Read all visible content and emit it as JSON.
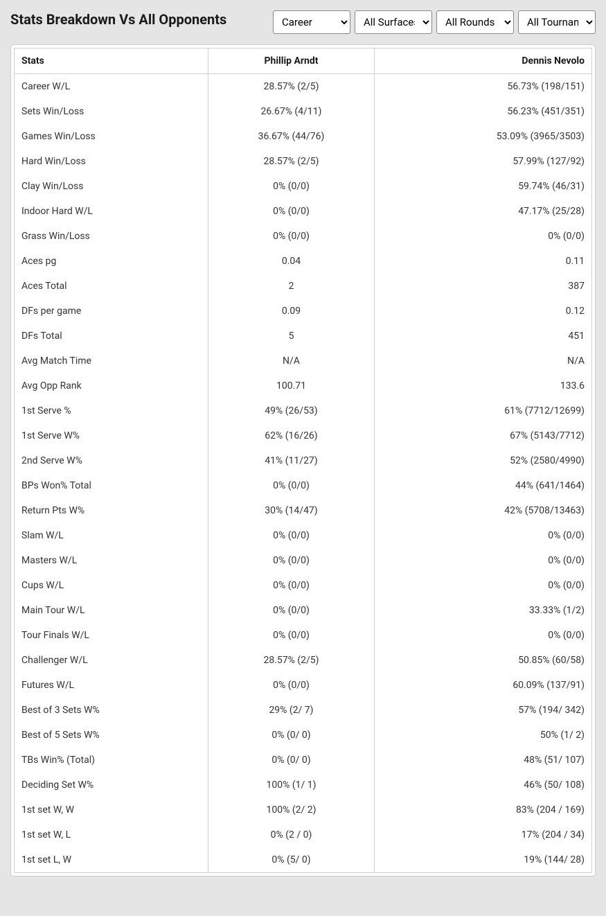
{
  "title": "Stats Breakdown Vs All Opponents",
  "filters": {
    "career": {
      "selected": "Career",
      "options": [
        "Career"
      ]
    },
    "surface": {
      "selected": "All Surfaces",
      "options": [
        "All Surfaces"
      ]
    },
    "rounds": {
      "selected": "All Rounds",
      "options": [
        "All Rounds"
      ]
    },
    "tournaments": {
      "selected": "All Tournaments",
      "options": [
        "All Tournaments"
      ]
    }
  },
  "columns": {
    "stats": "Stats",
    "player1": "Phillip Arndt",
    "player2": "Dennis Nevolo"
  },
  "rows": [
    {
      "stat": "Career W/L",
      "p1": "28.57% (2/5)",
      "p2": "56.73% (198/151)"
    },
    {
      "stat": "Sets Win/Loss",
      "p1": "26.67% (4/11)",
      "p2": "56.23% (451/351)"
    },
    {
      "stat": "Games Win/Loss",
      "p1": "36.67% (44/76)",
      "p2": "53.09% (3965/3503)"
    },
    {
      "stat": "Hard Win/Loss",
      "p1": "28.57% (2/5)",
      "p2": "57.99% (127/92)"
    },
    {
      "stat": "Clay Win/Loss",
      "p1": "0% (0/0)",
      "p2": "59.74% (46/31)"
    },
    {
      "stat": "Indoor Hard W/L",
      "p1": "0% (0/0)",
      "p2": "47.17% (25/28)"
    },
    {
      "stat": "Grass Win/Loss",
      "p1": "0% (0/0)",
      "p2": "0% (0/0)"
    },
    {
      "stat": "Aces pg",
      "p1": "0.04",
      "p2": "0.11"
    },
    {
      "stat": "Aces Total",
      "p1": "2",
      "p2": "387"
    },
    {
      "stat": "DFs per game",
      "p1": "0.09",
      "p2": "0.12"
    },
    {
      "stat": "DFs Total",
      "p1": "5",
      "p2": "451"
    },
    {
      "stat": "Avg Match Time",
      "p1": "N/A",
      "p2": "N/A"
    },
    {
      "stat": "Avg Opp Rank",
      "p1": "100.71",
      "p2": "133.6"
    },
    {
      "stat": "1st Serve %",
      "p1": "49% (26/53)",
      "p2": "61% (7712/12699)"
    },
    {
      "stat": "1st Serve W%",
      "p1": "62% (16/26)",
      "p2": "67% (5143/7712)"
    },
    {
      "stat": "2nd Serve W%",
      "p1": "41% (11/27)",
      "p2": "52% (2580/4990)"
    },
    {
      "stat": "BPs Won% Total",
      "p1": "0% (0/0)",
      "p2": "44% (641/1464)"
    },
    {
      "stat": "Return Pts W%",
      "p1": "30% (14/47)",
      "p2": "42% (5708/13463)"
    },
    {
      "stat": "Slam W/L",
      "p1": "0% (0/0)",
      "p2": "0% (0/0)"
    },
    {
      "stat": "Masters W/L",
      "p1": "0% (0/0)",
      "p2": "0% (0/0)"
    },
    {
      "stat": "Cups W/L",
      "p1": "0% (0/0)",
      "p2": "0% (0/0)"
    },
    {
      "stat": "Main Tour W/L",
      "p1": "0% (0/0)",
      "p2": "33.33% (1/2)"
    },
    {
      "stat": "Tour Finals W/L",
      "p1": "0% (0/0)",
      "p2": "0% (0/0)"
    },
    {
      "stat": "Challenger W/L",
      "p1": "28.57% (2/5)",
      "p2": "50.85% (60/58)"
    },
    {
      "stat": "Futures W/L",
      "p1": "0% (0/0)",
      "p2": "60.09% (137/91)"
    },
    {
      "stat": "Best of 3 Sets W%",
      "p1": "29% (2/ 7)",
      "p2": "57% (194/ 342)"
    },
    {
      "stat": "Best of 5 Sets W%",
      "p1": "0% (0/ 0)",
      "p2": "50% (1/ 2)"
    },
    {
      "stat": "TBs Win% (Total)",
      "p1": "0% (0/ 0)",
      "p2": "48% (51/ 107)"
    },
    {
      "stat": "Deciding Set W%",
      "p1": "100% (1/ 1)",
      "p2": "46% (50/ 108)"
    },
    {
      "stat": "1st set W, W",
      "p1": "100% (2/ 2)",
      "p2": "83% (204 / 169)"
    },
    {
      "stat": "1st set W, L",
      "p1": "0% (2 / 0)",
      "p2": "17% (204 / 34)"
    },
    {
      "stat": "1st set L, W",
      "p1": "0% (5/ 0)",
      "p2": "19% (144/ 28)"
    }
  ],
  "colors": {
    "page_bg": "#e5e5e5",
    "table_bg": "#ffffff",
    "border": "#d0d0d0",
    "text": "#1a1a1a"
  }
}
